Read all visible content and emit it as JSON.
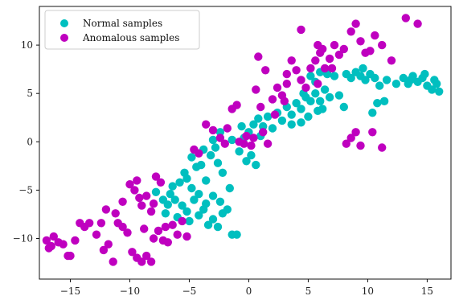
{
  "chart_data": {
    "type": "scatter",
    "title": "",
    "xlabel": "",
    "ylabel": "",
    "xlim": [
      -17.6,
      17.0
    ],
    "ylim": [
      -14.2,
      14.0
    ],
    "xticks": [
      -15,
      -10,
      -5,
      0,
      5,
      10,
      15
    ],
    "xtick_labels": [
      "−15",
      "−10",
      "−5",
      "0",
      "5",
      "10",
      "15"
    ],
    "yticks": [
      -10,
      -5,
      0,
      5,
      10
    ],
    "ytick_labels": [
      "−10",
      "−5",
      "0",
      "5",
      "10"
    ],
    "grid": false,
    "legend": {
      "placement": "top-left"
    },
    "series": [
      {
        "name": "Normal samples",
        "color": "#00bfbf",
        "points": [
          [
            -7.8,
            -5.2
          ],
          [
            -7.2,
            -6.0
          ],
          [
            -6.8,
            -6.5
          ],
          [
            -6.2,
            -6.0
          ],
          [
            -6.0,
            -7.8
          ],
          [
            -5.6,
            -6.6
          ],
          [
            -5.2,
            -7.2
          ],
          [
            -5.0,
            -8.2
          ],
          [
            -4.6,
            -6.0
          ],
          [
            -4.2,
            -7.6
          ],
          [
            -3.8,
            -7.0
          ],
          [
            -3.4,
            -8.6
          ],
          [
            -3.0,
            -8.0
          ],
          [
            -2.6,
            -8.8
          ],
          [
            -2.2,
            -7.4
          ],
          [
            -1.8,
            -7.0
          ],
          [
            -1.4,
            -9.6
          ],
          [
            -1.0,
            -9.6
          ],
          [
            -7.0,
            -7.4
          ],
          [
            -6.4,
            -4.6
          ],
          [
            -5.8,
            -4.2
          ],
          [
            -5.2,
            -3.8
          ],
          [
            -4.8,
            -4.8
          ],
          [
            -4.4,
            -2.6
          ],
          [
            -4.0,
            -2.4
          ],
          [
            -3.6,
            -4.0
          ],
          [
            -3.2,
            -1.4
          ],
          [
            -2.8,
            -0.6
          ],
          [
            -2.6,
            -2.2
          ],
          [
            -2.2,
            -3.2
          ],
          [
            -5.4,
            -3.2
          ],
          [
            -4.8,
            -1.6
          ],
          [
            -3.8,
            -0.8
          ],
          [
            -3.0,
            0.2
          ],
          [
            -2.4,
            1.0
          ],
          [
            -1.4,
            0.2
          ],
          [
            -0.8,
            -1.0
          ],
          [
            -0.4,
            0.4
          ],
          [
            0.0,
            1.0
          ],
          [
            0.2,
            -1.4
          ],
          [
            0.6,
            -2.4
          ],
          [
            -0.2,
            -2.0
          ],
          [
            0.4,
            1.8
          ],
          [
            0.8,
            2.4
          ],
          [
            1.2,
            1.6
          ],
          [
            1.6,
            2.6
          ],
          [
            2.0,
            1.4
          ],
          [
            2.4,
            3.0
          ],
          [
            2.8,
            2.2
          ],
          [
            3.2,
            3.6
          ],
          [
            3.6,
            2.8
          ],
          [
            4.0,
            4.0
          ],
          [
            4.4,
            3.4
          ],
          [
            4.8,
            4.6
          ],
          [
            5.2,
            4.2
          ],
          [
            5.6,
            5.0
          ],
          [
            6.0,
            4.2
          ],
          [
            6.4,
            5.4
          ],
          [
            6.8,
            4.6
          ],
          [
            7.2,
            6.8
          ],
          [
            5.2,
            6.8
          ],
          [
            5.6,
            6.2
          ],
          [
            6.0,
            7.2
          ],
          [
            6.6,
            7.0
          ],
          [
            3.6,
            1.8
          ],
          [
            4.4,
            2.0
          ],
          [
            5.0,
            2.6
          ],
          [
            5.8,
            3.2
          ],
          [
            8.2,
            7.0
          ],
          [
            8.6,
            6.6
          ],
          [
            9.0,
            7.2
          ],
          [
            9.4,
            6.8
          ],
          [
            9.8,
            6.4
          ],
          [
            10.2,
            7.0
          ],
          [
            10.6,
            6.6
          ],
          [
            11.0,
            5.8
          ],
          [
            10.8,
            4.0
          ],
          [
            11.4,
            4.2
          ],
          [
            13.0,
            6.6
          ],
          [
            13.4,
            6.0
          ],
          [
            13.8,
            6.8
          ],
          [
            14.2,
            6.2
          ],
          [
            14.6,
            6.6
          ],
          [
            15.0,
            5.8
          ],
          [
            15.4,
            5.4
          ],
          [
            15.8,
            6.0
          ],
          [
            16.0,
            5.2
          ],
          [
            15.6,
            6.4
          ],
          [
            14.8,
            7.0
          ],
          [
            13.6,
            6.4
          ],
          [
            -3.0,
            -5.6
          ],
          [
            -2.4,
            -6.2
          ],
          [
            -3.6,
            -6.4
          ],
          [
            -4.2,
            -5.4
          ],
          [
            -6.6,
            -5.4
          ],
          [
            -1.6,
            -4.8
          ],
          [
            -0.6,
            1.6
          ],
          [
            1.0,
            0.6
          ],
          [
            4.6,
            5.0
          ],
          [
            7.6,
            4.8
          ],
          [
            8.0,
            3.6
          ],
          [
            6.2,
            3.4
          ],
          [
            11.6,
            6.4
          ],
          [
            12.4,
            6.0
          ],
          [
            10.4,
            3.0
          ],
          [
            9.6,
            7.6
          ]
        ]
      },
      {
        "name": "Anomalous samples",
        "color": "#bf00bf",
        "points": [
          [
            -17.0,
            -10.2
          ],
          [
            -16.6,
            -10.8
          ],
          [
            -16.4,
            -9.8
          ],
          [
            -16.0,
            -10.4
          ],
          [
            -15.6,
            -10.6
          ],
          [
            -15.2,
            -11.8
          ],
          [
            -14.6,
            -10.2
          ],
          [
            -14.2,
            -8.4
          ],
          [
            -13.8,
            -8.8
          ],
          [
            -13.4,
            -8.4
          ],
          [
            -12.8,
            -9.6
          ],
          [
            -12.2,
            -11.2
          ],
          [
            -11.8,
            -10.6
          ],
          [
            -11.4,
            -12.4
          ],
          [
            -11.0,
            -8.4
          ],
          [
            -10.6,
            -8.8
          ],
          [
            -10.2,
            -9.4
          ],
          [
            -9.8,
            -11.4
          ],
          [
            -9.4,
            -12.0
          ],
          [
            -9.0,
            -12.4
          ],
          [
            -8.6,
            -11.8
          ],
          [
            -8.2,
            -12.4
          ],
          [
            -8.0,
            -10.0
          ],
          [
            -7.6,
            -9.2
          ],
          [
            -7.2,
            -10.2
          ],
          [
            -6.8,
            -10.4
          ],
          [
            -6.4,
            -8.6
          ],
          [
            -6.0,
            -9.6
          ],
          [
            -5.6,
            -8.2
          ],
          [
            -5.2,
            -9.8
          ],
          [
            -10.0,
            -4.4
          ],
          [
            -9.6,
            -5.0
          ],
          [
            -9.4,
            -4.0
          ],
          [
            -9.0,
            -6.6
          ],
          [
            -8.6,
            -5.6
          ],
          [
            -8.2,
            -7.2
          ],
          [
            -7.8,
            -3.6
          ],
          [
            -7.4,
            -4.2
          ],
          [
            -10.6,
            -6.2
          ],
          [
            -11.2,
            -7.4
          ],
          [
            -12.0,
            -7.0
          ],
          [
            -12.4,
            -8.4
          ],
          [
            -8.8,
            -9.0
          ],
          [
            -7.0,
            -8.8
          ],
          [
            -4.6,
            -0.8
          ],
          [
            -4.2,
            -1.2
          ],
          [
            -3.6,
            1.8
          ],
          [
            -3.0,
            1.2
          ],
          [
            -2.4,
            0.4
          ],
          [
            -1.8,
            1.4
          ],
          [
            -1.4,
            3.4
          ],
          [
            -1.0,
            3.8
          ],
          [
            -0.4,
            -0.2
          ],
          [
            -0.2,
            0.6
          ],
          [
            0.2,
            -0.4
          ],
          [
            0.4,
            0.4
          ],
          [
            1.2,
            1.0
          ],
          [
            1.6,
            -0.2
          ],
          [
            1.0,
            3.6
          ],
          [
            2.0,
            4.4
          ],
          [
            2.4,
            5.6
          ],
          [
            2.8,
            4.8
          ],
          [
            3.2,
            6.0
          ],
          [
            3.6,
            8.4
          ],
          [
            4.0,
            7.4
          ],
          [
            4.4,
            6.4
          ],
          [
            4.8,
            5.6
          ],
          [
            5.2,
            7.6
          ],
          [
            5.6,
            8.4
          ],
          [
            6.0,
            9.2
          ],
          [
            6.4,
            7.6
          ],
          [
            6.8,
            8.6
          ],
          [
            7.2,
            10.0
          ],
          [
            7.6,
            9.0
          ],
          [
            8.0,
            9.6
          ],
          [
            8.6,
            11.4
          ],
          [
            9.0,
            12.2
          ],
          [
            9.4,
            10.4
          ],
          [
            9.8,
            9.2
          ],
          [
            10.2,
            9.4
          ],
          [
            10.6,
            11.0
          ],
          [
            11.2,
            10.0
          ],
          [
            12.0,
            8.4
          ],
          [
            13.2,
            12.8
          ],
          [
            14.2,
            12.2
          ],
          [
            5.8,
            10.0
          ],
          [
            6.2,
            9.6
          ],
          [
            7.0,
            7.6
          ],
          [
            4.4,
            11.6
          ],
          [
            3.2,
            7.0
          ],
          [
            1.4,
            7.4
          ],
          [
            0.8,
            8.8
          ],
          [
            0.6,
            5.4
          ],
          [
            8.6,
            0.4
          ],
          [
            8.2,
            -0.2
          ],
          [
            9.0,
            1.0
          ],
          [
            9.4,
            -0.4
          ],
          [
            11.2,
            -0.6
          ],
          [
            10.4,
            1.0
          ],
          [
            5.8,
            6.0
          ],
          [
            -15.0,
            -11.8
          ],
          [
            -16.8,
            -11.0
          ],
          [
            -9.2,
            -5.8
          ],
          [
            -8.0,
            -6.4
          ],
          [
            -2.0,
            -0.2
          ],
          [
            -0.8,
            0.0
          ],
          [
            2.2,
            2.8
          ],
          [
            3.0,
            4.2
          ]
        ]
      }
    ]
  }
}
